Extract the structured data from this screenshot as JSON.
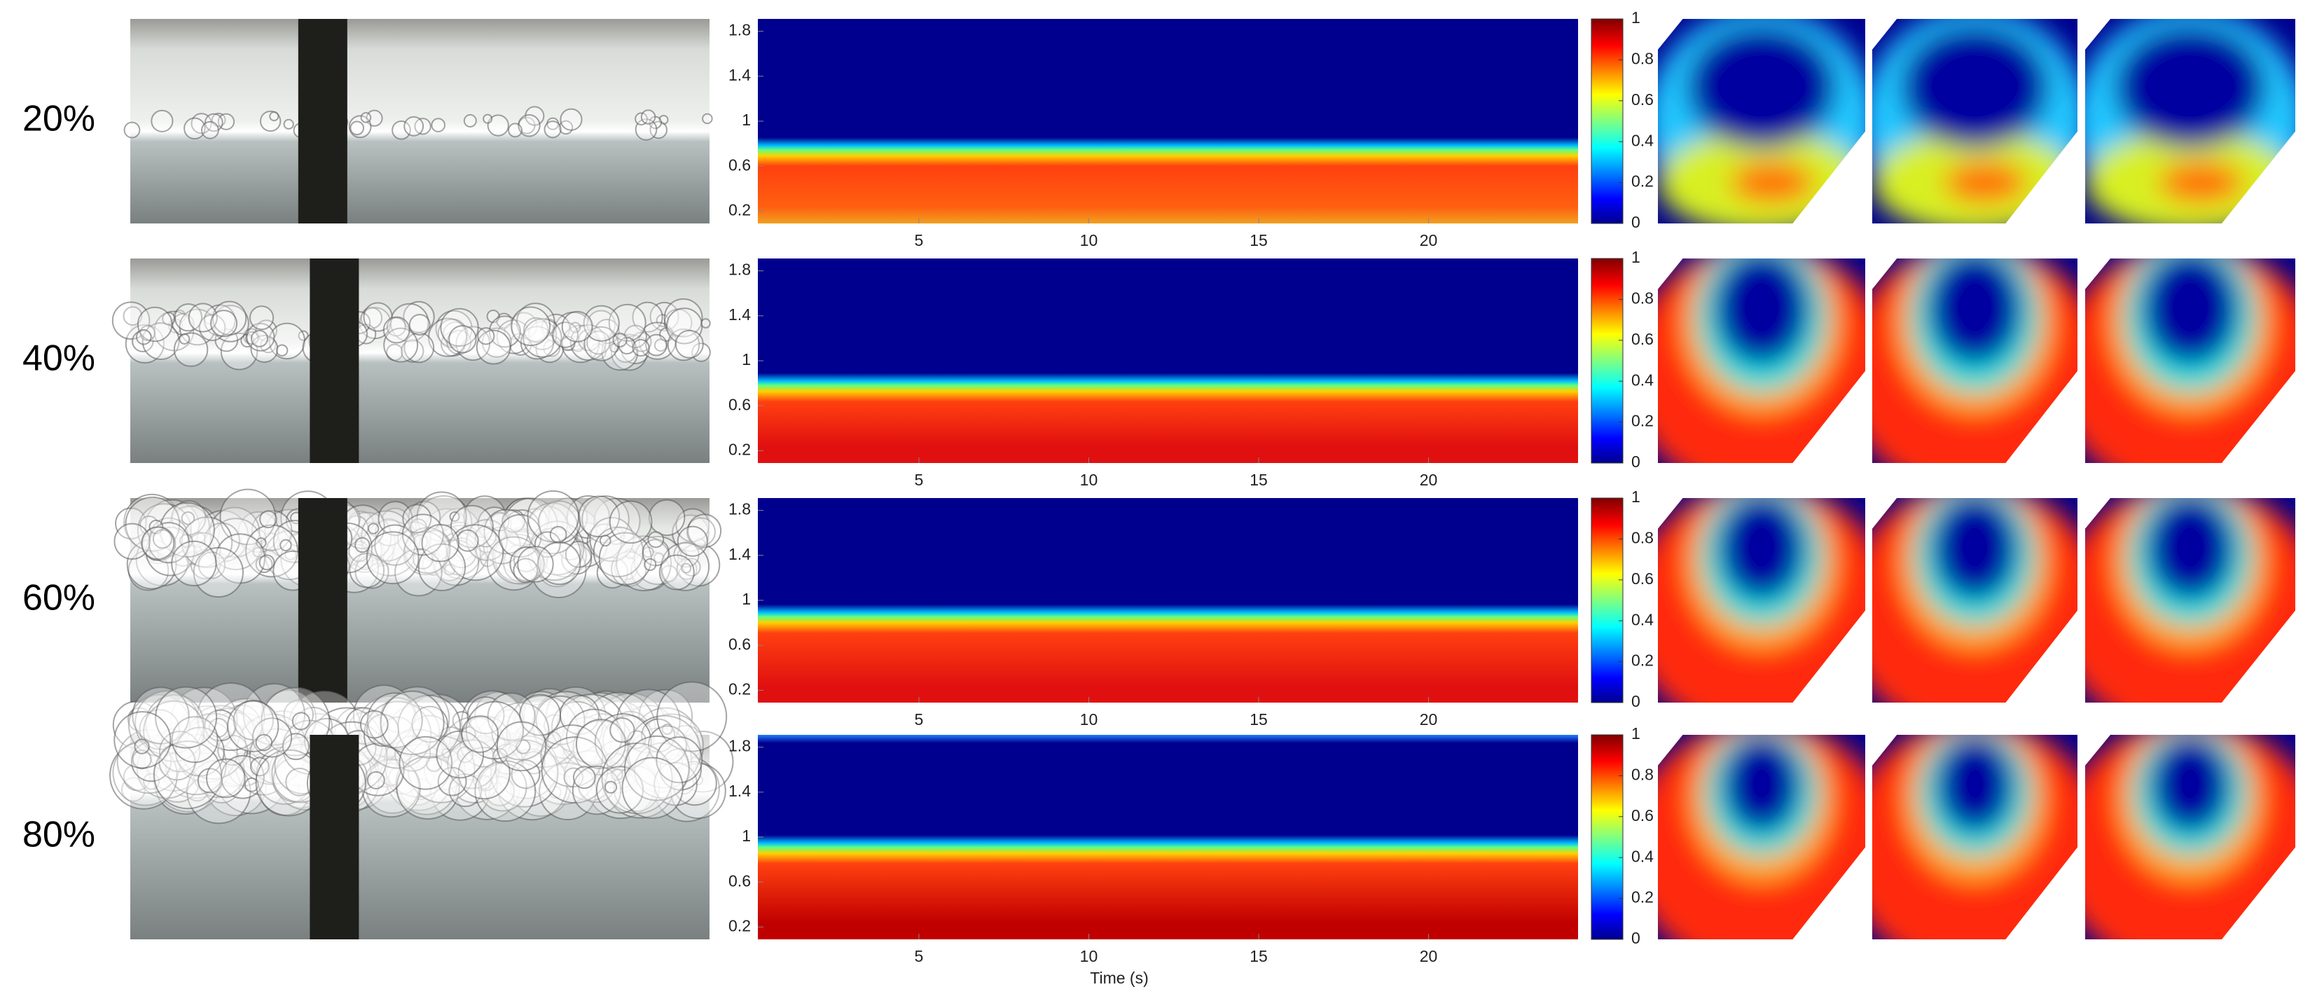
{
  "rows": [
    {
      "label": "20%"
    },
    {
      "label": "40%"
    },
    {
      "label": "60%"
    },
    {
      "label": "80%"
    }
  ],
  "heatmap": {
    "yticks": [
      0.2,
      0.6,
      1,
      1.4,
      1.8
    ],
    "ylim": [
      0.09,
      1.91
    ],
    "xticks": [
      5,
      10,
      15,
      20
    ],
    "xlim": [
      0.26,
      24.4
    ],
    "xlabel": "Time (s)"
  },
  "colorbar": {
    "ticks": [
      0,
      0.2,
      0.4,
      0.6,
      0.8,
      1
    ],
    "lim": [
      0,
      1
    ]
  }
}
